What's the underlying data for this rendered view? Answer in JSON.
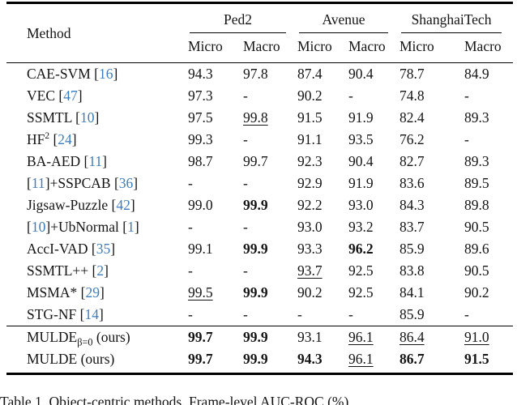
{
  "colors": {
    "citation": "#3d7dbf",
    "text": "#141414",
    "rule": "#000000"
  },
  "caption": "Table 1. Object-centric methods. Frame-level AUC-ROC (%)",
  "table": {
    "method_header": "Method",
    "groups": [
      "Ped2",
      "Avenue",
      "ShanghaiTech"
    ],
    "sub_headers": [
      "Micro",
      "Macro",
      "Micro",
      "Macro",
      "Micro",
      "Macro"
    ],
    "rows": [
      {
        "method": [
          [
            "CAE-SVM [",
            "t"
          ],
          [
            "16",
            "c"
          ],
          [
            "]",
            "t"
          ]
        ],
        "cells": [
          [
            "94.3",
            ""
          ],
          [
            "97.8",
            ""
          ],
          [
            "87.4",
            ""
          ],
          [
            "90.4",
            ""
          ],
          [
            "78.7",
            ""
          ],
          [
            "84.9",
            ""
          ]
        ]
      },
      {
        "method": [
          [
            "VEC [",
            "t"
          ],
          [
            "47",
            "c"
          ],
          [
            "]",
            "t"
          ]
        ],
        "cells": [
          [
            "97.3",
            ""
          ],
          [
            "-",
            ""
          ],
          [
            "90.2",
            ""
          ],
          [
            "-",
            ""
          ],
          [
            "74.8",
            ""
          ],
          [
            "-",
            ""
          ]
        ]
      },
      {
        "method": [
          [
            "SSMTL [",
            "t"
          ],
          [
            "10",
            "c"
          ],
          [
            "]",
            "t"
          ]
        ],
        "cells": [
          [
            "97.5",
            ""
          ],
          [
            "99.8",
            "u"
          ],
          [
            "91.5",
            ""
          ],
          [
            "91.9",
            ""
          ],
          [
            "82.4",
            ""
          ],
          [
            "89.3",
            ""
          ]
        ]
      },
      {
        "method": [
          [
            "HF",
            "t"
          ],
          [
            "2",
            "sup"
          ],
          [
            " [",
            "t"
          ],
          [
            "24",
            "c"
          ],
          [
            "]",
            "t"
          ]
        ],
        "cells": [
          [
            "99.3",
            ""
          ],
          [
            "-",
            ""
          ],
          [
            "91.1",
            ""
          ],
          [
            "93.5",
            ""
          ],
          [
            "76.2",
            ""
          ],
          [
            "-",
            ""
          ]
        ]
      },
      {
        "method": [
          [
            "BA-AED [",
            "t"
          ],
          [
            "11",
            "c"
          ],
          [
            "]",
            "t"
          ]
        ],
        "cells": [
          [
            "98.7",
            ""
          ],
          [
            "99.7",
            ""
          ],
          [
            "92.3",
            ""
          ],
          [
            "90.4",
            ""
          ],
          [
            "82.7",
            ""
          ],
          [
            "89.3",
            ""
          ]
        ]
      },
      {
        "method": [
          [
            "[",
            "t"
          ],
          [
            "11",
            "c"
          ],
          [
            "]+SSPCAB [",
            "t"
          ],
          [
            "36",
            "c"
          ],
          [
            "]",
            "t"
          ]
        ],
        "cells": [
          [
            "-",
            ""
          ],
          [
            "-",
            ""
          ],
          [
            "92.9",
            ""
          ],
          [
            "91.9",
            ""
          ],
          [
            "83.6",
            ""
          ],
          [
            "89.5",
            ""
          ]
        ]
      },
      {
        "method": [
          [
            "Jigsaw-Puzzle [",
            "t"
          ],
          [
            "42",
            "c"
          ],
          [
            "]",
            "t"
          ]
        ],
        "cells": [
          [
            "99.0",
            ""
          ],
          [
            "99.9",
            "b"
          ],
          [
            "92.2",
            ""
          ],
          [
            "93.0",
            ""
          ],
          [
            "84.3",
            ""
          ],
          [
            "89.8",
            ""
          ]
        ]
      },
      {
        "method": [
          [
            "[",
            "t"
          ],
          [
            "10",
            "c"
          ],
          [
            "]+UbNormal [",
            "t"
          ],
          [
            "1",
            "c"
          ],
          [
            "]",
            "t"
          ]
        ],
        "cells": [
          [
            "-",
            ""
          ],
          [
            "-",
            ""
          ],
          [
            "93.0",
            ""
          ],
          [
            "93.2",
            ""
          ],
          [
            "83.7",
            ""
          ],
          [
            "90.5",
            ""
          ]
        ]
      },
      {
        "method": [
          [
            "AccI-VAD [",
            "t"
          ],
          [
            "35",
            "c"
          ],
          [
            "]",
            "t"
          ]
        ],
        "cells": [
          [
            "99.1",
            ""
          ],
          [
            "99.9",
            "b"
          ],
          [
            "93.3",
            ""
          ],
          [
            "96.2",
            "b"
          ],
          [
            "85.9",
            ""
          ],
          [
            "89.6",
            ""
          ]
        ]
      },
      {
        "method": [
          [
            "SSMTL++ [",
            "t"
          ],
          [
            "2",
            "c"
          ],
          [
            "]",
            "t"
          ]
        ],
        "cells": [
          [
            "-",
            ""
          ],
          [
            "-",
            ""
          ],
          [
            "93.7",
            "u"
          ],
          [
            "92.5",
            ""
          ],
          [
            "83.8",
            ""
          ],
          [
            "90.5",
            ""
          ]
        ]
      },
      {
        "method": [
          [
            "MSMA* [",
            "t"
          ],
          [
            "29",
            "c"
          ],
          [
            "]",
            "t"
          ]
        ],
        "cells": [
          [
            "99.5",
            "u"
          ],
          [
            "99.9",
            "b"
          ],
          [
            "90.2",
            ""
          ],
          [
            "92.5",
            ""
          ],
          [
            "84.1",
            ""
          ],
          [
            "90.2",
            ""
          ]
        ]
      },
      {
        "method": [
          [
            "STG-NF [",
            "t"
          ],
          [
            "14",
            "c"
          ],
          [
            "]",
            "t"
          ]
        ],
        "cells": [
          [
            "-",
            ""
          ],
          [
            "-",
            ""
          ],
          [
            "-",
            ""
          ],
          [
            "-",
            ""
          ],
          [
            "85.9",
            ""
          ],
          [
            "-",
            ""
          ]
        ]
      },
      {
        "sep": true,
        "method": [
          [
            "MULDE",
            "t"
          ],
          [
            "β=0",
            "sub"
          ],
          [
            " (ours)",
            "t"
          ]
        ],
        "cells": [
          [
            "99.7",
            "b"
          ],
          [
            "99.9",
            "b"
          ],
          [
            "93.1",
            ""
          ],
          [
            "96.1",
            "u"
          ],
          [
            "86.4",
            "u"
          ],
          [
            "91.0",
            "u"
          ]
        ]
      },
      {
        "method": [
          [
            "MULDE (ours)",
            "t"
          ]
        ],
        "cells": [
          [
            "99.7",
            "b"
          ],
          [
            "99.9",
            "b"
          ],
          [
            "94.3",
            "b"
          ],
          [
            "96.1",
            "u"
          ],
          [
            "86.7",
            "b"
          ],
          [
            "91.5",
            "b"
          ]
        ]
      }
    ]
  }
}
